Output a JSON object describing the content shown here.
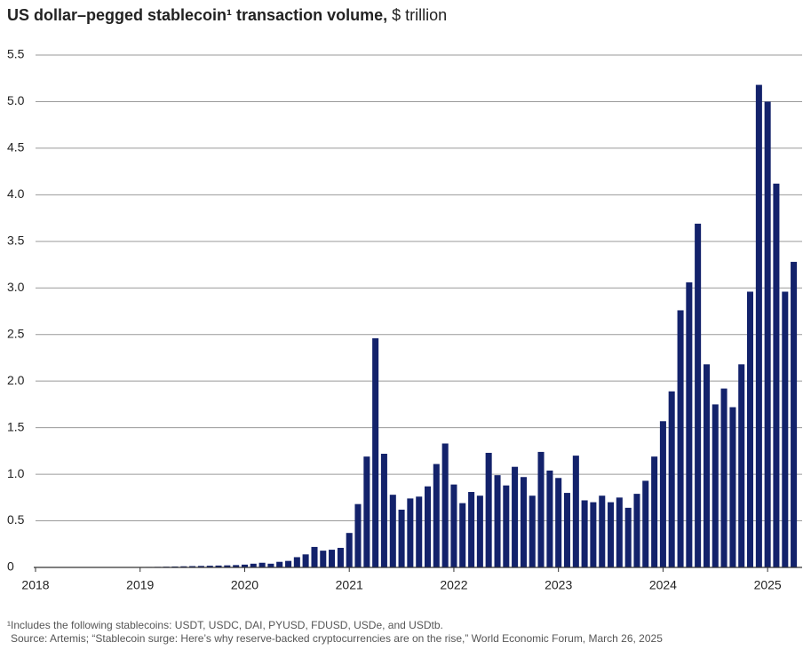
{
  "chart_data": {
    "type": "bar",
    "title": "US dollar–pegged stablecoin¹ transaction volume,",
    "unit": "$ trillion",
    "footnote": "¹Includes the following stablecoins: USDT, USDC, DAI, PYUSD, FDUSD, USDe, and USDtb.",
    "source": "Source: Artemis; “Stablecoin surge: Here’s why reserve-backed cryptocurrencies are on the rise,” World Economic Forum, March 26, 2025",
    "color": "#13226b",
    "grid": true,
    "x": [
      2018,
      2018.083,
      2018.167,
      2018.25,
      2018.333,
      2018.417,
      2018.5,
      2018.583,
      2018.667,
      2018.75,
      2018.833,
      2018.917,
      2019,
      2019.083,
      2019.167,
      2019.25,
      2019.333,
      2019.417,
      2019.5,
      2019.583,
      2019.667,
      2019.75,
      2019.833,
      2019.917,
      2020,
      2020.083,
      2020.167,
      2020.25,
      2020.333,
      2020.417,
      2020.5,
      2020.583,
      2020.667,
      2020.75,
      2020.833,
      2020.917,
      2021,
      2021.083,
      2021.167,
      2021.25,
      2021.333,
      2021.417,
      2021.5,
      2021.583,
      2021.667,
      2021.75,
      2021.833,
      2021.917,
      2022,
      2022.083,
      2022.167,
      2022.25,
      2022.333,
      2022.417,
      2022.5,
      2022.583,
      2022.667,
      2022.75,
      2022.833,
      2022.917,
      2023,
      2023.083,
      2023.167,
      2023.25,
      2023.333,
      2023.417,
      2023.5,
      2023.583,
      2023.667,
      2023.75,
      2023.833,
      2023.917,
      2024,
      2024.083,
      2024.167,
      2024.25,
      2024.333,
      2024.417,
      2024.5,
      2024.583,
      2024.667,
      2024.75,
      2024.833,
      2024.917,
      2025,
      2025.083,
      2025.167,
      2025.25
    ],
    "values": [
      0,
      0,
      0,
      0,
      0,
      0,
      0,
      0.001,
      0.001,
      0.002,
      0.002,
      0.003,
      0.004,
      0.005,
      0.006,
      0.008,
      0.01,
      0.012,
      0.014,
      0.016,
      0.018,
      0.02,
      0.022,
      0.025,
      0.03,
      0.04,
      0.05,
      0.04,
      0.06,
      0.07,
      0.11,
      0.14,
      0.22,
      0.18,
      0.19,
      0.21,
      0.37,
      0.68,
      1.19,
      2.46,
      1.22,
      0.78,
      0.62,
      0.74,
      0.76,
      0.87,
      1.11,
      1.33,
      0.89,
      0.69,
      0.81,
      0.77,
      1.23,
      0.99,
      0.88,
      1.08,
      0.97,
      0.77,
      1.24,
      1.04,
      0.96,
      0.8,
      1.2,
      0.72,
      0.7,
      0.77,
      0.7,
      0.75,
      0.64,
      0.79,
      0.93,
      1.19,
      1.57,
      1.89,
      2.76,
      3.06,
      3.69,
      2.18,
      1.75,
      1.92,
      1.72,
      2.18,
      2.96,
      5.18,
      5.0,
      4.12,
      2.96,
      3.28
    ],
    "xlim": [
      2018,
      2025.33
    ],
    "xticks": [
      2018,
      2019,
      2020,
      2021,
      2022,
      2023,
      2024,
      2025
    ],
    "ylim": [
      0,
      5.5
    ],
    "yticks": [
      0,
      0.5,
      {
        "value": 1,
        "label": "1.0"
      },
      1.5,
      {
        "value": 2,
        "label": "2.0"
      },
      2.5,
      {
        "value": 3,
        "label": "3.0"
      },
      3.5,
      {
        "value": 4,
        "label": "4.0"
      },
      4.5,
      {
        "value": 5,
        "label": "5.0"
      },
      5.5
    ]
  }
}
